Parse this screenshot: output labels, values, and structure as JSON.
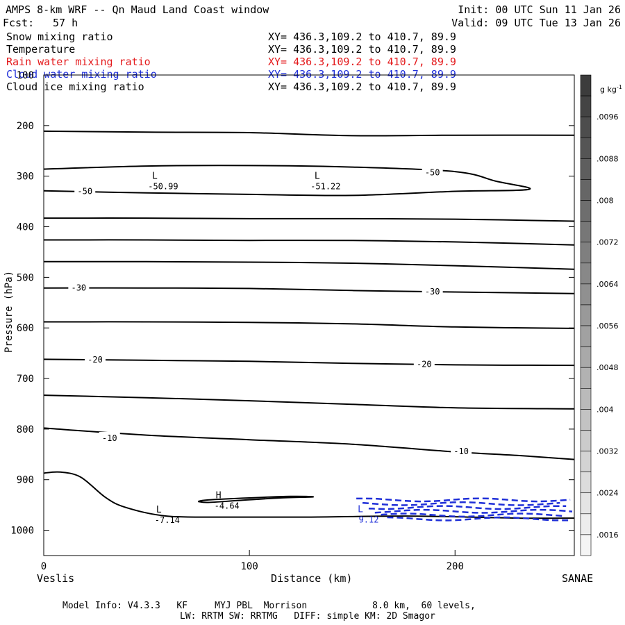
{
  "header": {
    "title": "AMPS 8-km WRF -- Qn Maud Land Coast window",
    "fcst_label": "Fcst:",
    "fcst_value": "57 h",
    "init": "Init: 00 UTC Sun 11 Jan 26",
    "valid": "Valid: 09 UTC Tue 13 Jan 26"
  },
  "fields": [
    {
      "name": "Snow mixing ratio",
      "xy": "XY= 436.3,109.2 to 410.7, 89.9",
      "color": "#000000"
    },
    {
      "name": "Temperature",
      "xy": "XY= 436.3,109.2 to 410.7, 89.9",
      "color": "#000000"
    },
    {
      "name": "Rain water mixing ratio",
      "xy": "XY= 436.3,109.2 to 410.7, 89.9",
      "color": "#e41a1c"
    },
    {
      "name": "Cloud water mixing ratio",
      "xy": "XY= 436.3,109.2 to 410.7, 89.9",
      "color": "#1f2fd8"
    },
    {
      "name": "Cloud ice mixing ratio",
      "xy": "XY= 436.3,109.2 to 410.7, 89.9",
      "color": "#000000"
    }
  ],
  "footer": {
    "line1": "Model Info: V4.3.3   KF     MYJ PBL  Morrison            8.0 km,  60 levels,",
    "line2": "LW: RRTM SW: RRTMG   DIFF: simple KM: 2D Smagor"
  },
  "colorbar": {
    "unit": "g kg",
    "unit_exp": "-1",
    "levels": [
      ".0096",
      ".0088",
      ".008",
      ".0072",
      ".0064",
      ".0056",
      ".0048",
      ".004",
      ".0032",
      ".0024",
      ".0016"
    ]
  },
  "chart_data": {
    "type": "contour",
    "title": "AMPS 8-km WRF -- Qn Maud Land Coast window",
    "xlabel": "Distance (km)",
    "ylabel": "Pressure (hPa)",
    "x_range": [
      0,
      258
    ],
    "y_range": [
      1050,
      100
    ],
    "x_ticks": [
      0,
      100,
      200
    ],
    "y_ticks": [
      100,
      200,
      300,
      400,
      500,
      600,
      700,
      800,
      900,
      1000
    ],
    "x_end_labels": {
      "left": "Veslis",
      "right": "SANAE"
    },
    "temperature_isotherms": [
      {
        "label": "-10",
        "label_at": [
          [
            32,
            818
          ],
          [
            203,
            844
          ]
        ],
        "points": [
          [
            0,
            798
          ],
          [
            50,
            812
          ],
          [
            100,
            821
          ],
          [
            150,
            830
          ],
          [
            200,
            845
          ],
          [
            230,
            852
          ],
          [
            258,
            860
          ]
        ]
      },
      {
        "label": "-20",
        "label_at": [
          [
            25,
            663
          ],
          [
            185,
            672
          ]
        ],
        "points": [
          [
            0,
            662
          ],
          [
            50,
            664
          ],
          [
            100,
            666
          ],
          [
            150,
            670
          ],
          [
            200,
            673
          ],
          [
            258,
            674
          ]
        ]
      },
      {
        "label": "-30",
        "label_at": [
          [
            17,
            521
          ],
          [
            189,
            528
          ]
        ],
        "points": [
          [
            0,
            521
          ],
          [
            50,
            521
          ],
          [
            100,
            522
          ],
          [
            150,
            526
          ],
          [
            200,
            529
          ],
          [
            258,
            532
          ]
        ]
      },
      {
        "label": "-50",
        "label_at": [
          [
            20,
            330
          ],
          [
            189,
            293
          ]
        ],
        "points": [
          [
            0,
            286
          ],
          [
            50,
            280
          ],
          [
            100,
            279
          ],
          [
            150,
            282
          ],
          [
            200,
            291
          ],
          [
            220,
            310
          ],
          [
            236,
            326
          ],
          [
            200,
            330
          ],
          [
            150,
            338
          ],
          [
            100,
            336
          ],
          [
            50,
            333
          ],
          [
            0,
            329
          ]
        ]
      },
      {
        "label": "",
        "label_at": [],
        "points": [
          [
            0,
            211
          ],
          [
            50,
            213
          ],
          [
            100,
            214
          ],
          [
            150,
            220
          ],
          [
            200,
            219
          ],
          [
            258,
            219
          ]
        ]
      },
      {
        "label": "",
        "label_at": [],
        "points": [
          [
            0,
            383
          ],
          [
            50,
            383
          ],
          [
            100,
            384
          ],
          [
            150,
            384
          ],
          [
            200,
            385
          ],
          [
            258,
            389
          ]
        ]
      },
      {
        "label": "",
        "label_at": [],
        "points": [
          [
            0,
            426
          ],
          [
            50,
            426
          ],
          [
            100,
            427
          ],
          [
            150,
            427
          ],
          [
            200,
            430
          ],
          [
            258,
            436
          ]
        ]
      },
      {
        "label": "",
        "label_at": [],
        "points": [
          [
            0,
            469
          ],
          [
            50,
            469
          ],
          [
            100,
            470
          ],
          [
            150,
            472
          ],
          [
            200,
            477
          ],
          [
            258,
            484
          ]
        ]
      },
      {
        "label": "",
        "label_at": [],
        "points": [
          [
            0,
            588
          ],
          [
            50,
            588
          ],
          [
            100,
            589
          ],
          [
            150,
            592
          ],
          [
            200,
            598
          ],
          [
            258,
            601
          ]
        ]
      },
      {
        "label": "",
        "label_at": [],
        "points": [
          [
            0,
            733
          ],
          [
            50,
            738
          ],
          [
            100,
            744
          ],
          [
            150,
            751
          ],
          [
            200,
            758
          ],
          [
            258,
            760
          ]
        ]
      },
      {
        "label": "",
        "label_at": [],
        "points": [
          [
            0,
            887
          ],
          [
            8,
            885
          ],
          [
            18,
            895
          ],
          [
            30,
            935
          ],
          [
            40,
            955
          ],
          [
            60,
            972
          ],
          [
            90,
            974
          ],
          [
            130,
            974
          ],
          [
            180,
            972
          ],
          [
            230,
            976
          ],
          [
            258,
            976
          ]
        ]
      }
    ],
    "extrema": [
      {
        "type": "L",
        "value": "-50.99",
        "x": 54,
        "p": 305
      },
      {
        "type": "L",
        "value": "-51.22",
        "x": 133,
        "p": 305
      },
      {
        "type": "L",
        "value": "-7.14",
        "x": 56,
        "p": 965
      },
      {
        "type": "H",
        "value": "-4.64",
        "x": 85,
        "p": 937
      },
      {
        "type": "L",
        "value": "9.12",
        "x": 154,
        "p": 964
      }
    ],
    "cloud_water_region": {
      "x_range": [
        152,
        258
      ],
      "p_range": [
        940,
        985
      ]
    }
  }
}
